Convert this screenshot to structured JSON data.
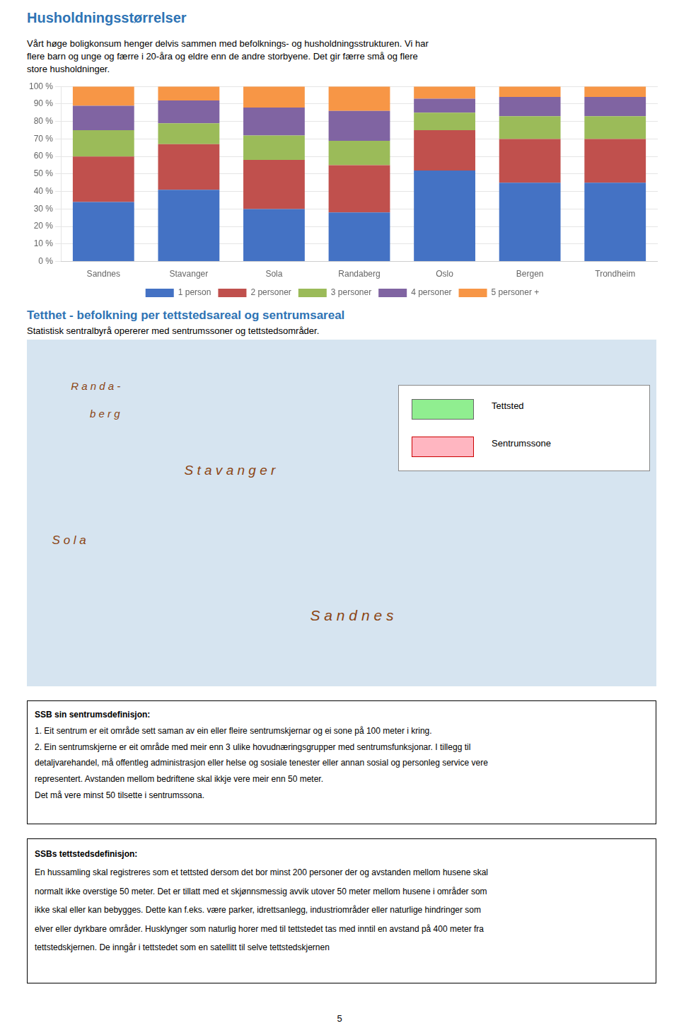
{
  "chart_data": {
    "type": "bar",
    "title": "Husholdningsstørrelser",
    "subtitle": [
      "Vårt høge boligkonsum henger delvis sammen med befolknings- og husholdningsstrukturen. Vi har",
      "flere barn og unge og færre i 20-åra og eldre enn de andre storbyene. Det gir færre små og flere",
      "store husholdninger."
    ],
    "categories": [
      "Sandnes",
      "Stavanger",
      "Sola",
      "Randaberg",
      "Oslo",
      "Bergen",
      "Trondheim"
    ],
    "series": [
      {
        "name": "1 person",
        "color": "#4472C4",
        "values": [
          34,
          41,
          30,
          28,
          52,
          45,
          45
        ]
      },
      {
        "name": "2 personer",
        "color": "#C0504D",
        "values": [
          26,
          26,
          28,
          27,
          23,
          25,
          25
        ]
      },
      {
        "name": "3 personer",
        "color": "#9BBB59",
        "values": [
          15,
          12,
          14,
          14,
          10,
          13,
          13
        ]
      },
      {
        "name": "4 personer",
        "color": "#8064A2",
        "values": [
          14,
          13,
          16,
          17,
          8,
          11,
          11
        ]
      },
      {
        "name": "5 personer +",
        "color": "#F79646",
        "values": [
          11,
          8,
          12,
          14,
          7,
          6,
          6
        ]
      }
    ],
    "stacked": true,
    "ylim": [
      0,
      100
    ],
    "yticks": [
      {
        "value": 0,
        "label": "0 %"
      },
      {
        "value": 10,
        "label": "10 %"
      },
      {
        "value": 20,
        "label": "20 %"
      },
      {
        "value": 30,
        "label": "30 %"
      },
      {
        "value": 40,
        "label": "40 %"
      },
      {
        "value": 50,
        "label": "50 %"
      },
      {
        "value": 60,
        "label": "60 %"
      },
      {
        "value": 70,
        "label": "70 %"
      },
      {
        "value": 80,
        "label": "80 %"
      },
      {
        "value": 90,
        "label": "90 %"
      },
      {
        "value": 100,
        "label": "100 %"
      }
    ],
    "grid": true,
    "legend": "bottom",
    "annotations": [
      "Tetthet -  befolkning per tettstedsareal og sentrumsareal",
      "Statistisk sentralbyrå opererer med sentrumssoner og tettstedsområder.",
      "R a n d a -",
      "b e r g",
      "S t a v a n g e r",
      "S o l a",
      "S a n d n e s",
      "Tettsted",
      "Sentrumssone",
      "SSB sin sentrumsdefinisjon:",
      "1. Eit sentrum er eit område sett saman av ein eller fleire sentrumskjernar og ei sone på 100 meter i kring.",
      "2. Ein sentrumskjerne er eit område med meir enn 3 ulike hovudnæringsgrupper med sentrumsfunksjonar. I tillegg til",
      "detaljvarehandel, må offentleg administrasjon eller helse og sosiale tenester eller annan sosial og personleg service  vere",
      "representert. Avstanden mellom bedriftene skal ikkje vere meir enn 50 meter.",
      "Det må vere minst 50 tilsette i sentrumssona.",
      "SSBs tettstedsdefinisjon:",
      "En hussamling skal registreres som et tettsted dersom det bor minst 200 personer der og avstanden mellom husene skal",
      "normalt ikke overstige 50 meter. Det er tillatt med et skjønnsmessig avvik utover 50 meter mellom husene i områder som",
      "ikke skal eller kan bebygges. Dette kan f.eks. være parker, idrettsanlegg, industriområder eller naturlige hindringer som",
      "elver eller dyrkbare områder. Husklynger som naturlig horer med til tettstedet tas med inntil en avstand på 400 meter fra",
      "tettstedskjernen. De inngår i tettstedet som en satellitt til selve tettstedskjernen",
      "5"
    ]
  }
}
